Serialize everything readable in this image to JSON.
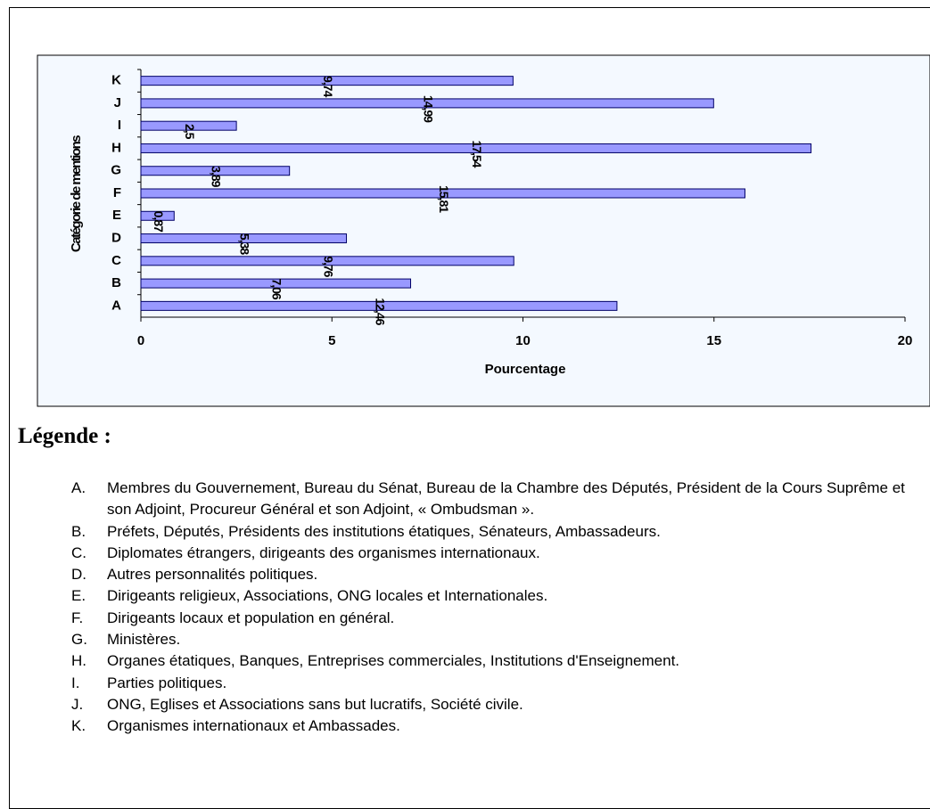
{
  "chart_data": {
    "type": "bar",
    "orientation": "horizontal",
    "categories": [
      "A",
      "B",
      "C",
      "D",
      "E",
      "F",
      "G",
      "H",
      "I",
      "J",
      "K"
    ],
    "values": [
      12.46,
      7.06,
      9.76,
      5.38,
      0.87,
      15.81,
      3.89,
      17.54,
      2.5,
      14.99,
      9.74
    ],
    "value_labels": [
      "12,46",
      "7,06",
      "9,76",
      "5,38",
      "0,87",
      "15,81",
      "3,89",
      "17,54",
      "2,5",
      "14,99",
      "9,74"
    ],
    "color": "#9999ff",
    "xlim": [
      0,
      20
    ],
    "xticks": [
      0,
      5,
      10,
      15,
      20
    ],
    "xlabel": "Pourcentage",
    "ylabel": "Catégorie de mentions"
  },
  "legend": {
    "title": "Légende :",
    "items": [
      {
        "letter": "A.",
        "text": "Membres du Gouvernement, Bureau du Sénat, Bureau de la Chambre des Députés, Président de la Cours Suprême et son Adjoint, Procureur Général et son Adjoint, « Ombudsman »."
      },
      {
        "letter": "B.",
        "text": "Préfets, Députés, Présidents des institutions étatiques, Sénateurs, Ambassadeurs."
      },
      {
        "letter": "C.",
        "text": "Diplomates étrangers, dirigeants des organismes internationaux."
      },
      {
        "letter": "D.",
        "text": "Autres personnalités politiques."
      },
      {
        "letter": "E.",
        "text": "Dirigeants religieux, Associations, ONG locales et Internationales."
      },
      {
        "letter": "F.",
        "text": "Dirigeants locaux et population en général."
      },
      {
        "letter": "G.",
        "text": "Ministères."
      },
      {
        "letter": "H.",
        "text": "Organes étatiques, Banques, Entreprises commerciales, Institutions d'Enseignement."
      },
      {
        "letter": "I.",
        "text": "Parties politiques."
      },
      {
        "letter": "J.",
        "text": "ONG, Eglises et Associations sans but lucratifs, Société civile."
      },
      {
        "letter": "K.",
        "text": "Organismes internationaux et Ambassades."
      }
    ]
  }
}
